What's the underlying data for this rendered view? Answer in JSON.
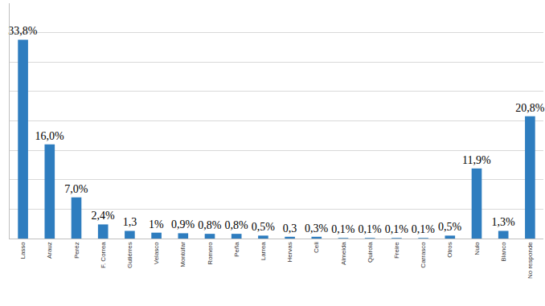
{
  "chart_data": {
    "type": "bar",
    "categories": [
      "Lasso",
      "Arauz",
      "Peréz",
      "F. Correa",
      "Gutiérres",
      "Velasco",
      "Montúfar",
      "Romero",
      "Peña",
      "Larrea",
      "Hervas",
      "Celi",
      "Almeida",
      "Quirola",
      "Freire",
      "Carrasco",
      "Otros",
      "Nulo",
      "Blanco",
      "No responde"
    ],
    "values": [
      33.8,
      16.0,
      7.0,
      2.4,
      1.3,
      1,
      0.9,
      0.8,
      0.8,
      0.5,
      0.3,
      0.3,
      0.1,
      0.1,
      0.1,
      0.1,
      0.5,
      11.9,
      1.3,
      20.8
    ],
    "value_labels": [
      "33,8%",
      "16,0%",
      "7,0%",
      "2,4%",
      "1,3",
      "1%",
      "0,9%",
      "0,8%",
      "0,8%",
      "0,5%",
      "0,3",
      "0,3%",
      "0,1%",
      "0,1%",
      "0,1%",
      "0,1%",
      "0,5%",
      "11,9%",
      "1,3%",
      "20,8%"
    ],
    "color": "#2e7dbf",
    "ylim": [
      0,
      40
    ],
    "yticks": [
      0,
      5,
      10,
      15,
      20,
      25,
      30,
      35,
      40
    ],
    "grid": true,
    "data_labels": true,
    "tick_labels": "x"
  }
}
